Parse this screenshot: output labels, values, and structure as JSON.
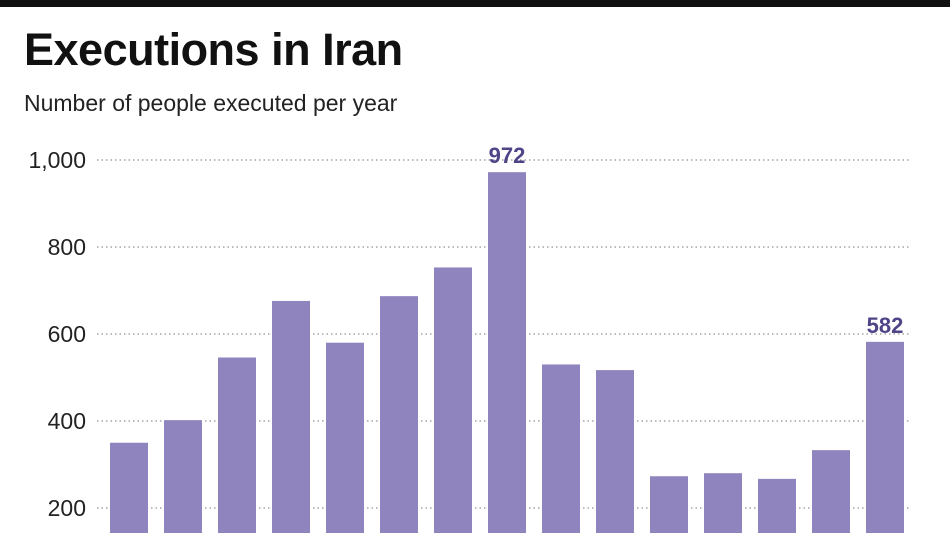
{
  "chart_data": {
    "type": "bar",
    "title": "Executions in Iran",
    "subtitle": "Number of people executed per year",
    "xlabel": "",
    "ylabel": "",
    "ylim": [
      0,
      1000
    ],
    "yticks": [
      200,
      400,
      600,
      800,
      1000
    ],
    "ytick_labels": [
      "200",
      "400",
      "600",
      "800",
      "1,000"
    ],
    "grid": true,
    "values": [
      350,
      402,
      546,
      676,
      580,
      687,
      753,
      972,
      530,
      517,
      273,
      280,
      267,
      333,
      582
    ],
    "data_labels": [
      {
        "index": 7,
        "text": "972"
      },
      {
        "index": 14,
        "text": "582"
      }
    ],
    "colors": {
      "bar": "#8f84bd",
      "label": "#4e4488",
      "grid": "#777777"
    }
  }
}
